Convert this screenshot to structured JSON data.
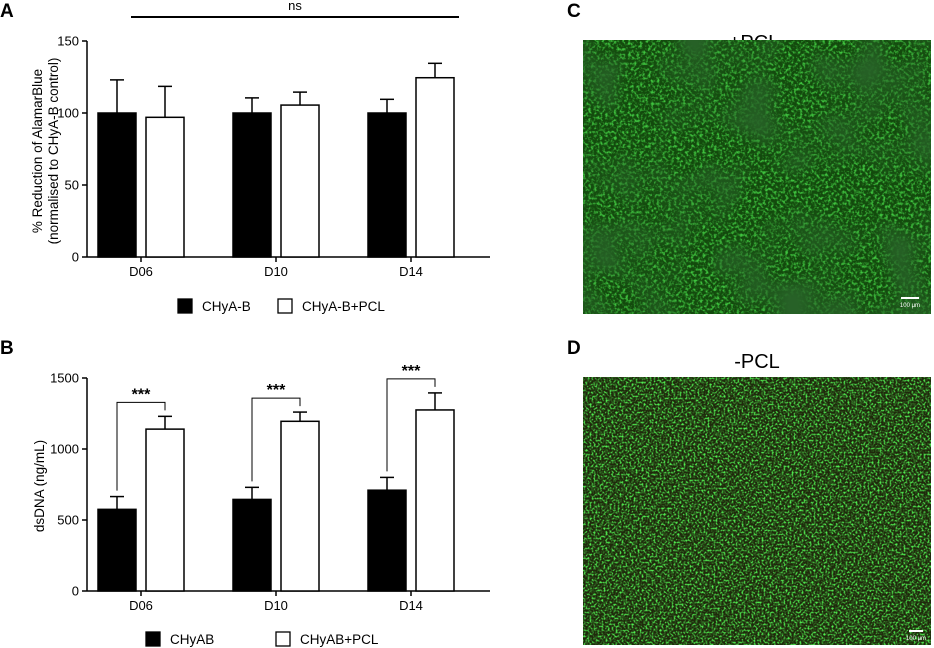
{
  "panels": {
    "a": "A",
    "b": "B",
    "c": "C",
    "d": "D"
  },
  "chart_data": [
    {
      "type": "bar",
      "panel": "A",
      "categories": [
        "D06",
        "D10",
        "D14"
      ],
      "series": [
        {
          "name": "CHyA-B",
          "values": [
            100,
            100,
            100
          ],
          "errors": [
            23,
            10.5,
            9.5
          ],
          "color": "#000000"
        },
        {
          "name": "CHyA-B+PCL",
          "values": [
            97,
            105.5,
            124.5
          ],
          "errors": [
            21.5,
            9,
            10
          ],
          "color": "#ffffff"
        }
      ],
      "ylabel": [
        "% Reduction of AlamarBlue",
        "(normalised to CHyA-B control)"
      ],
      "ylim": [
        0,
        150
      ],
      "yticks": [
        "0",
        "50",
        "100",
        "150"
      ],
      "significance": "ns",
      "legend_position": "bottom"
    },
    {
      "type": "bar",
      "panel": "B",
      "categories": [
        "D06",
        "D10",
        "D14"
      ],
      "series": [
        {
          "name": "CHyAB",
          "values": [
            575,
            645,
            710
          ],
          "errors": [
            90,
            85,
            90
          ],
          "color": "#000000"
        },
        {
          "name": "CHyAB+PCL",
          "values": [
            1140,
            1195,
            1275
          ],
          "errors": [
            90,
            65,
            120
          ],
          "color": "#ffffff"
        }
      ],
      "ylabel": [
        "dsDNA (ng/mL)"
      ],
      "ylim": [
        0,
        1500
      ],
      "yticks": [
        "0",
        "500",
        "1000",
        "1500"
      ],
      "significance": "***",
      "legend_position": "bottom"
    }
  ],
  "images": {
    "c": {
      "title": "+PCL",
      "scale_bar": "100 μm"
    },
    "d": {
      "title": "-PCL",
      "scale_bar": "100 μm"
    }
  }
}
